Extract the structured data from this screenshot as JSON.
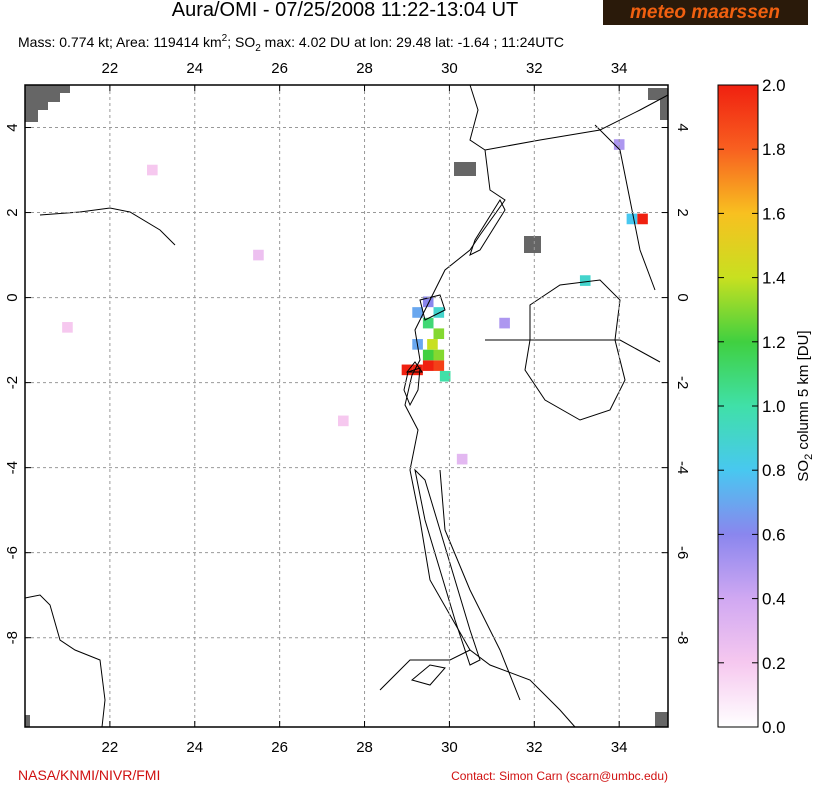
{
  "header": {
    "title": "Aura/OMI - 07/25/2008 11:22-13:04 UT",
    "logo": "meteo maarssen",
    "subtitle": [
      "Mass: 0.774 kt; Area: 119414 km",
      "2",
      "; SO",
      "2",
      " max: 4.02 DU at lon: 29.48 lat: -1.64 ; 11:24UTC"
    ]
  },
  "map": {
    "xlim": [
      20,
      35.15
    ],
    "ylim": [
      -10.1,
      5
    ],
    "xticks": [
      22,
      24,
      26,
      28,
      30,
      32,
      34
    ],
    "yticks": [
      4,
      2,
      0,
      -2,
      -4,
      -6,
      -8
    ],
    "grid": true,
    "cells": [
      {
        "lon": 29.0,
        "lat": -1.7,
        "value": 2.0
      },
      {
        "lon": 29.25,
        "lat": -1.7,
        "value": 2.0
      },
      {
        "lon": 29.5,
        "lat": -1.6,
        "value": 2.0
      },
      {
        "lon": 29.75,
        "lat": -1.6,
        "value": 1.9
      },
      {
        "lon": 29.5,
        "lat": -1.35,
        "value": 1.2
      },
      {
        "lon": 29.75,
        "lat": -1.35,
        "value": 1.3
      },
      {
        "lon": 29.6,
        "lat": -1.1,
        "value": 1.4
      },
      {
        "lon": 29.75,
        "lat": -0.85,
        "value": 1.3
      },
      {
        "lon": 29.5,
        "lat": -0.6,
        "value": 1.1
      },
      {
        "lon": 29.75,
        "lat": -0.35,
        "value": 0.9
      },
      {
        "lon": 29.5,
        "lat": -0.1,
        "value": 0.6
      },
      {
        "lon": 29.25,
        "lat": -0.35,
        "value": 0.7
      },
      {
        "lon": 29.25,
        "lat": -1.1,
        "value": 0.7
      },
      {
        "lon": 29.9,
        "lat": -1.85,
        "value": 1.0
      },
      {
        "lon": 34.55,
        "lat": 1.85,
        "value": 2.0
      },
      {
        "lon": 34.3,
        "lat": 1.85,
        "value": 0.8
      },
      {
        "lon": 31.3,
        "lat": -0.6,
        "value": 0.5
      },
      {
        "lon": 33.2,
        "lat": 0.4,
        "value": 0.9
      },
      {
        "lon": 34.0,
        "lat": 3.6,
        "value": 0.5
      },
      {
        "lon": 30.3,
        "lat": -3.8,
        "value": 0.3
      },
      {
        "lon": 23.0,
        "lat": 3.0,
        "value": 0.2
      },
      {
        "lon": 25.5,
        "lat": 1.0,
        "value": 0.25
      },
      {
        "lon": 21.0,
        "lat": -0.7,
        "value": 0.2
      },
      {
        "lon": 27.5,
        "lat": -2.9,
        "value": 0.2
      }
    ]
  },
  "colorbar": {
    "label": [
      "SO",
      "2",
      " column 5 km [DU]"
    ],
    "colormap": [
      "#ffffff",
      "#f6c8ef",
      "#d0a8f2",
      "#8a86ee",
      "#48c8f0",
      "#40e0a8",
      "#40d040",
      "#c8e020",
      "#f8c020",
      "#f86020",
      "#f02010"
    ],
    "ticks": [
      {
        "value": 0,
        "label": "0.0"
      },
      0.2,
      0.4,
      0.6,
      0.8,
      {
        "value": 1,
        "label": "1.0"
      },
      1.2,
      1.4,
      1.6,
      1.8,
      {
        "value": 2,
        "label": "2.0"
      }
    ]
  },
  "footer": {
    "left": "NASA/KNMI/NIVR/FMI",
    "right": "Contact: Simon Carn (scarn@umbc.edu)"
  }
}
